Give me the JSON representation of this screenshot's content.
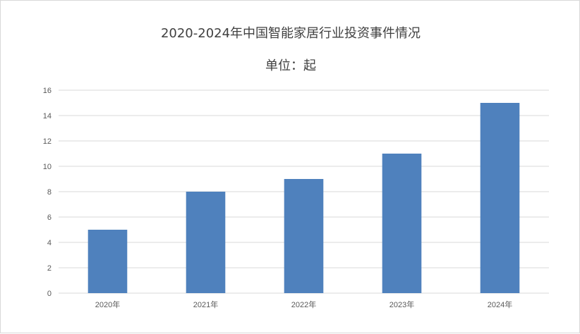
{
  "chart_data": {
    "type": "bar",
    "title": "2020-2024年中国智能家居行业投资事件情况",
    "subtitle": "单位：起",
    "categories": [
      "2020年",
      "2021年",
      "2022年",
      "2023年",
      "2024年"
    ],
    "values": [
      5,
      8,
      9,
      11,
      15
    ],
    "ylim": [
      0,
      16
    ],
    "yticks": [
      0,
      2,
      4,
      6,
      8,
      10,
      12,
      14,
      16
    ],
    "grid": true,
    "legend": "none",
    "bar_color": "#4f81bd"
  }
}
